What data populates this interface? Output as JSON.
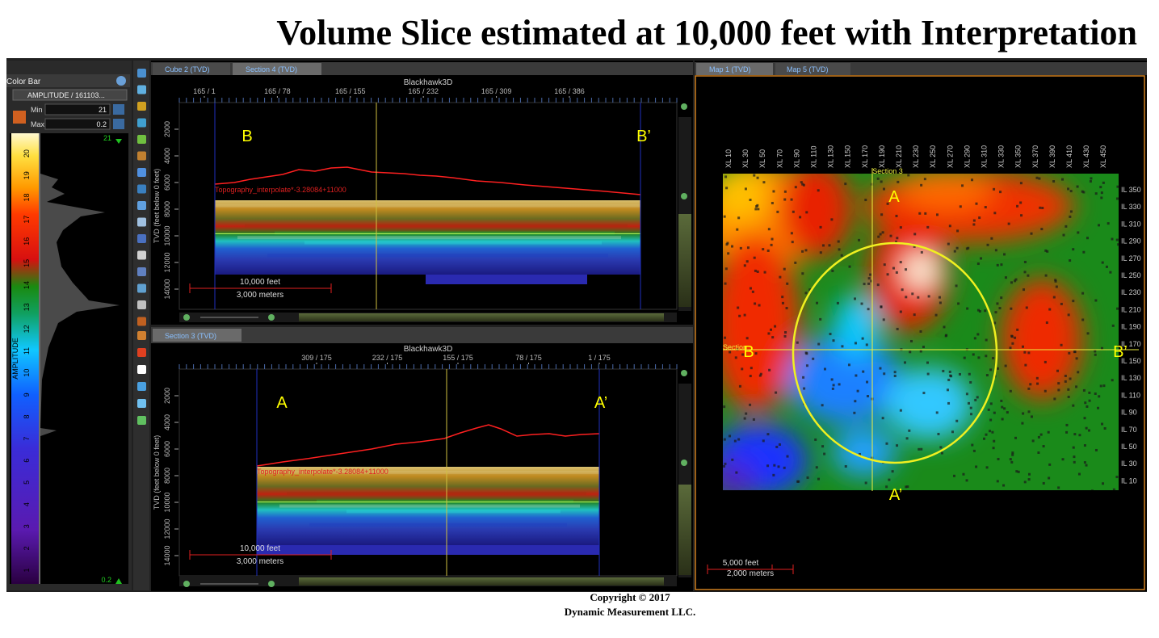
{
  "header": {
    "title": "Volume Slice estimated at 10,000 feet with Interpretation"
  },
  "footer": {
    "copyright": "Copyright  © 2017",
    "company": "Dynamic Measurement LLC."
  },
  "color_bar": {
    "title": "Color Bar",
    "attribute": "AMPLITUDE / 161103...",
    "min_label": "Min",
    "min_value": "21",
    "max_label": "Max",
    "max_value": "0.2",
    "axis_title": "AMPLITUDE",
    "scale_labels": [
      "1",
      "2",
      "3",
      "4",
      "5",
      "6",
      "7",
      "8",
      "9",
      "10",
      "11",
      "12",
      "13",
      "14",
      "15",
      "16",
      "17",
      "18",
      "19",
      "20"
    ],
    "top_marker": "21",
    "bottom_marker": "0.2"
  },
  "top_tabs": [
    "Cube 2 (TVD)",
    "Section 4 (TVD)"
  ],
  "bottom_tabs": [
    "Section 3 (TVD)"
  ],
  "section_4": {
    "title": "Blackhawk3D",
    "x_labels": [
      "165 / 1",
      "165 / 78",
      "165 / 155",
      "165 / 232",
      "165 / 309",
      "165 / 386"
    ],
    "y_labels": [
      "2000",
      "4000",
      "6000",
      "8000",
      "10000",
      "12000",
      "14000"
    ],
    "y_title": "TVD (feet below 0 feet)",
    "left_marker": "B",
    "right_marker": "B’",
    "horizon_label": "Topography_interpolate*-3.28084+11000",
    "scale_feet": "10,000 feet",
    "scale_meters": "3,000 meters"
  },
  "section_3": {
    "title": "Blackhawk3D",
    "x_labels": [
      "309 / 175",
      "232 / 175",
      "155 / 175",
      "78 / 175",
      "1 / 175"
    ],
    "y_labels": [
      "2000",
      "4000",
      "6000",
      "8000",
      "10000",
      "12000",
      "14000"
    ],
    "y_title": "TVD (feet below 0 feet)",
    "left_marker": "A",
    "right_marker": "A’",
    "horizon_label": "Topography_interpolate*-3.28084+11000",
    "scale_feet": "10,000 feet",
    "scale_meters": "3,000 meters"
  },
  "map_tabs": [
    "Map 1 (TVD)",
    "Map 5 (TVD)"
  ],
  "map": {
    "xl_labels": [
      "XL 10",
      "XL 30",
      "XL 50",
      "XL 70",
      "XL 90",
      "XL 110",
      "XL 130",
      "XL 150",
      "XL 170",
      "XL 190",
      "XL 210",
      "XL 230",
      "XL 250",
      "XL 270",
      "XL 290",
      "XL 310",
      "XL 330",
      "XL 350",
      "XL 370",
      "XL 390",
      "XL 410",
      "XL 430",
      "XL 450"
    ],
    "il_labels": [
      "IL 350",
      "IL 330",
      "IL 310",
      "IL 290",
      "IL 270",
      "IL 250",
      "IL 230",
      "IL 210",
      "IL 190",
      "IL 170",
      "IL 150",
      "IL 130",
      "IL 110",
      "IL 90",
      "IL 70",
      "IL 50",
      "IL 30",
      "IL 10"
    ],
    "section_label_top": "Section 3",
    "section_label_left": "Section",
    "marker_top": "A",
    "marker_bottom": "A’",
    "marker_left": "B",
    "marker_right": "B’",
    "scale_feet": "5,000 feet",
    "scale_meters": "2,000 meters"
  }
}
